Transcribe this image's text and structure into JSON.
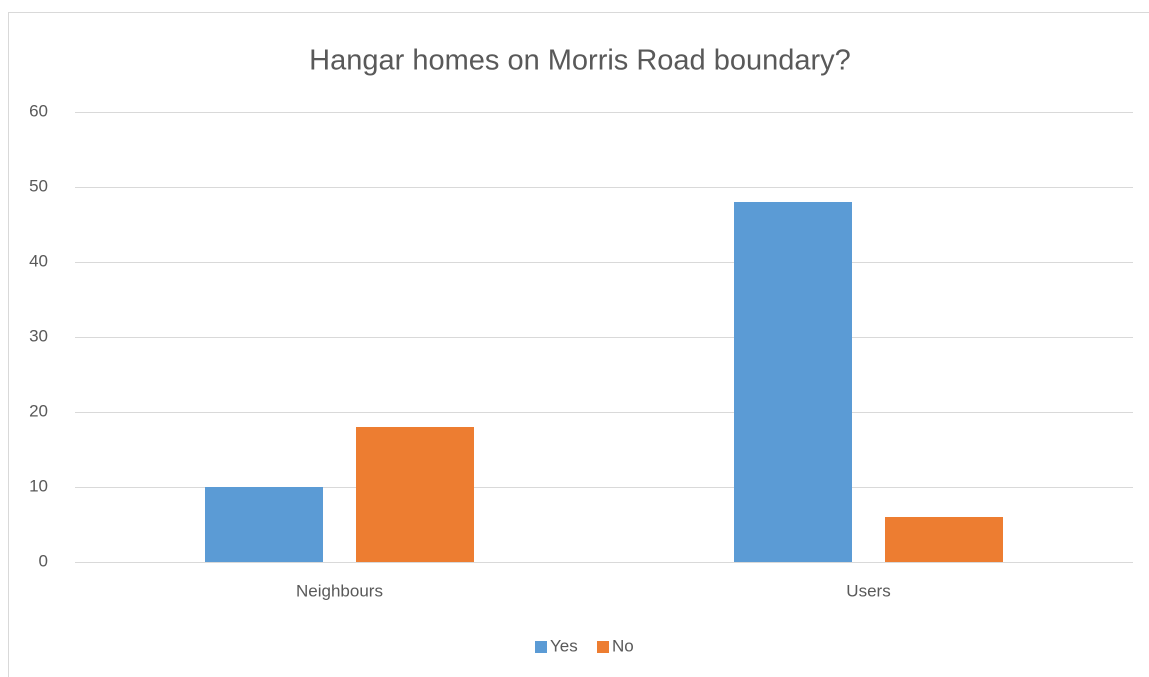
{
  "chart_data": {
    "type": "bar",
    "title": "Hangar homes on Morris Road boundary?",
    "categories": [
      "Neighbours",
      "Users"
    ],
    "series": [
      {
        "name": "Yes",
        "color": "#5b9bd5",
        "values": [
          10,
          48
        ]
      },
      {
        "name": "No",
        "color": "#ed7d31",
        "values": [
          18,
          6
        ]
      }
    ],
    "ylim": [
      0,
      60
    ],
    "yticks": [
      0,
      10,
      20,
      30,
      40,
      50,
      60
    ],
    "grid": true,
    "legend": "bottom"
  }
}
